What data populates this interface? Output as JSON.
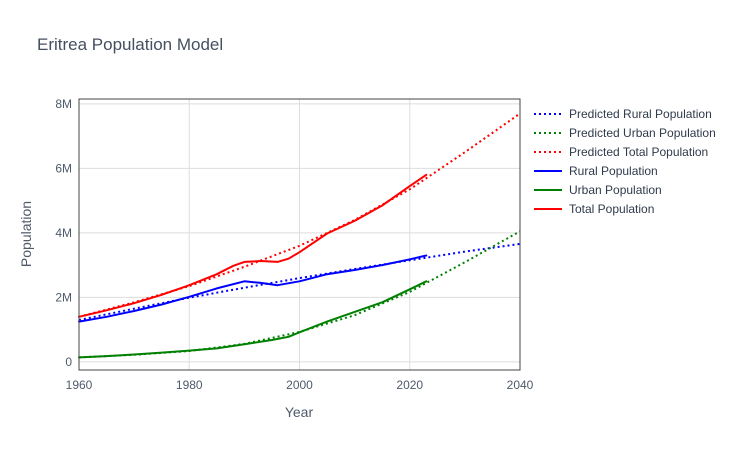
{
  "chart_data": {
    "type": "line",
    "title": "Eritrea Population Model",
    "xlabel": "Year",
    "ylabel": "Population",
    "xlim": [
      1960,
      2040
    ],
    "ylim": [
      -250000,
      8150000
    ],
    "x_ticks": [
      {
        "value": 1960,
        "label": "1960"
      },
      {
        "value": 1980,
        "label": "1980"
      },
      {
        "value": 2000,
        "label": "2000"
      },
      {
        "value": 2020,
        "label": "2020"
      },
      {
        "value": 2040,
        "label": "2040"
      }
    ],
    "y_ticks": [
      {
        "value": 0,
        "label": "0"
      },
      {
        "value": 2000000,
        "label": "2M"
      },
      {
        "value": 4000000,
        "label": "4M"
      },
      {
        "value": 6000000,
        "label": "6M"
      },
      {
        "value": 8000000,
        "label": "8M"
      }
    ],
    "grid": true,
    "legend_position": "right",
    "series": [
      {
        "name": "Predicted Rural Population",
        "color": "#0000ff",
        "style": "dotted",
        "x": [
          1960,
          1970,
          1980,
          1990,
          2000,
          2010,
          2020,
          2030,
          2040
        ],
        "y": [
          1300000,
          1650000,
          1990000,
          2300000,
          2600000,
          2880000,
          3150000,
          3420000,
          3660000
        ]
      },
      {
        "name": "Predicted Urban Population",
        "color": "#008000",
        "style": "dotted",
        "x": [
          1960,
          1970,
          1980,
          1990,
          2000,
          2010,
          2020,
          2030,
          2040
        ],
        "y": [
          140000,
          220000,
          340000,
          560000,
          930000,
          1450000,
          2170000,
          3090000,
          4050000
        ]
      },
      {
        "name": "Predicted Total Population",
        "color": "#ff0000",
        "style": "dotted",
        "x": [
          1960,
          1970,
          1980,
          1990,
          2000,
          2010,
          2020,
          2030,
          2040
        ],
        "y": [
          1400000,
          1850000,
          2350000,
          2950000,
          3600000,
          4400000,
          5350000,
          6500000,
          7700000
        ]
      },
      {
        "name": "Rural Population",
        "color": "#0000ff",
        "style": "solid",
        "x": [
          1960,
          1965,
          1970,
          1975,
          1980,
          1985,
          1990,
          1993,
          1996,
          2000,
          2005,
          2010,
          2015,
          2020,
          2023
        ],
        "y": [
          1250000,
          1400000,
          1580000,
          1780000,
          2020000,
          2280000,
          2500000,
          2450000,
          2380000,
          2500000,
          2720000,
          2850000,
          3000000,
          3180000,
          3300000
        ]
      },
      {
        "name": "Urban Population",
        "color": "#008000",
        "style": "solid",
        "x": [
          1960,
          1965,
          1970,
          1975,
          1980,
          1985,
          1990,
          1995,
          1998,
          2000,
          2005,
          2010,
          2015,
          2020,
          2023
        ],
        "y": [
          140000,
          180000,
          230000,
          290000,
          350000,
          420000,
          550000,
          680000,
          780000,
          920000,
          1250000,
          1550000,
          1850000,
          2250000,
          2500000
        ]
      },
      {
        "name": "Total Population",
        "color": "#ff0000",
        "style": "solid",
        "x": [
          1960,
          1965,
          1970,
          1975,
          1980,
          1985,
          1988,
          1990,
          1993,
          1996,
          1998,
          2000,
          2005,
          2010,
          2015,
          2020,
          2023
        ],
        "y": [
          1400000,
          1600000,
          1820000,
          2080000,
          2380000,
          2720000,
          2980000,
          3100000,
          3130000,
          3100000,
          3200000,
          3400000,
          3980000,
          4370000,
          4850000,
          5450000,
          5800000
        ]
      }
    ]
  }
}
